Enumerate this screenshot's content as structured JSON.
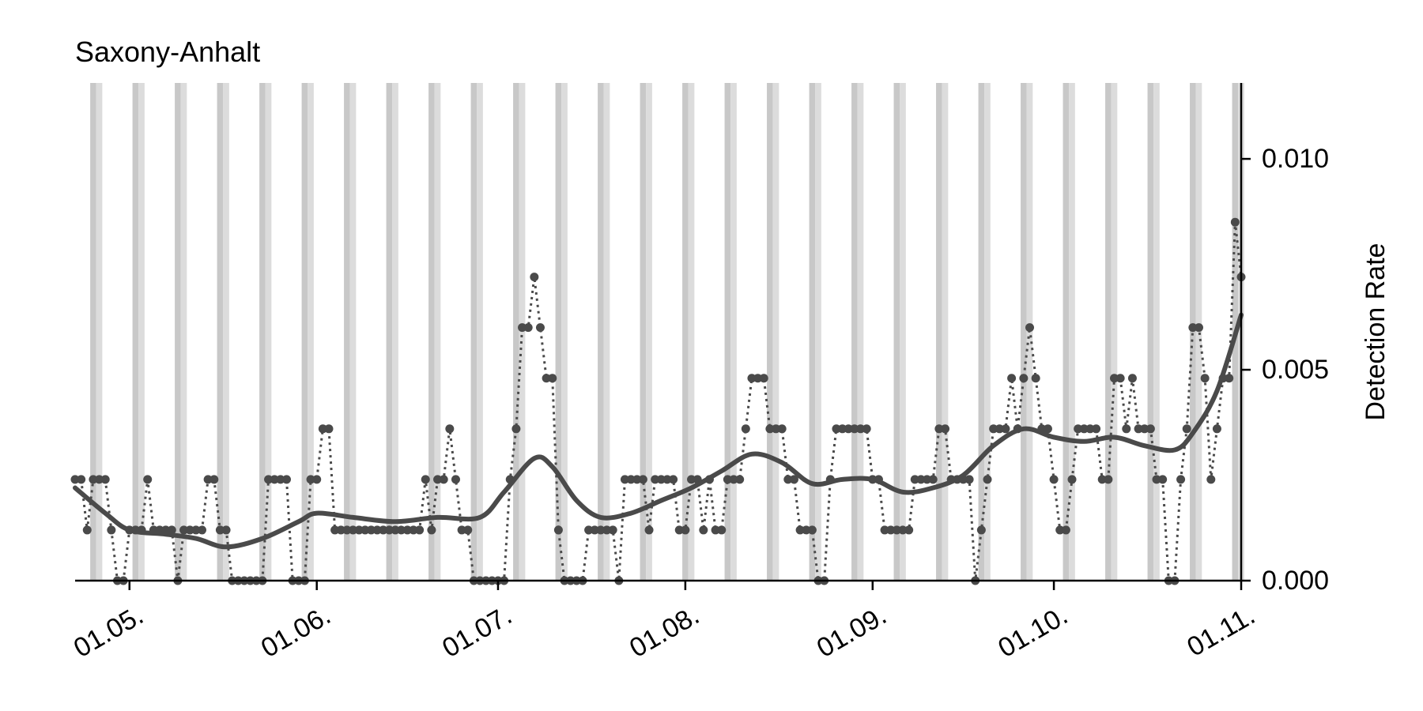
{
  "chart_data": {
    "type": "line",
    "title": "Saxony-Anhalt",
    "xlabel": "",
    "ylabel": "Detection Rate",
    "x_ticks": [
      "01.05.",
      "01.06.",
      "01.07.",
      "01.08.",
      "01.09.",
      "01.10.",
      "01.11."
    ],
    "y_ticks": [
      "0.000",
      "0.005",
      "0.010"
    ],
    "xlim": [
      "2020-04-22",
      "2020-11-01"
    ],
    "ylim": [
      0,
      0.0118
    ],
    "y_axis_side": "right",
    "grid": false,
    "weekend_shading": true,
    "colors": {
      "main": "#4a4a4a",
      "weekend_band": "#dcdcdc",
      "weekend_band_edge": "#c8c8c8",
      "axis": "#000000"
    },
    "series": [
      {
        "style": "dotted-markers",
        "points": [
          [
            "2020-04-22",
            0.0024
          ],
          [
            "2020-04-23",
            0.0024
          ],
          [
            "2020-04-24",
            0.0012
          ],
          [
            "2020-04-25",
            0.0024
          ],
          [
            "2020-04-26",
            0.0024
          ],
          [
            "2020-04-27",
            0.0024
          ],
          [
            "2020-04-28",
            0.0012
          ],
          [
            "2020-04-29",
            0.0
          ],
          [
            "2020-04-30",
            0.0
          ],
          [
            "2020-05-01",
            0.0012
          ],
          [
            "2020-05-02",
            0.0012
          ],
          [
            "2020-05-03",
            0.0012
          ],
          [
            "2020-05-04",
            0.0024
          ],
          [
            "2020-05-05",
            0.0012
          ],
          [
            "2020-05-06",
            0.0012
          ],
          [
            "2020-05-07",
            0.0012
          ],
          [
            "2020-05-08",
            0.0012
          ],
          [
            "2020-05-09",
            0.0
          ],
          [
            "2020-05-10",
            0.0012
          ],
          [
            "2020-05-11",
            0.0012
          ],
          [
            "2020-05-12",
            0.0012
          ],
          [
            "2020-05-13",
            0.0012
          ],
          [
            "2020-05-14",
            0.0024
          ],
          [
            "2020-05-15",
            0.0024
          ],
          [
            "2020-05-16",
            0.0012
          ],
          [
            "2020-05-17",
            0.0012
          ],
          [
            "2020-05-18",
            0.0
          ],
          [
            "2020-05-19",
            0.0
          ],
          [
            "2020-05-20",
            0.0
          ],
          [
            "2020-05-21",
            0.0
          ],
          [
            "2020-05-22",
            0.0
          ],
          [
            "2020-05-23",
            0.0
          ],
          [
            "2020-05-24",
            0.0024
          ],
          [
            "2020-05-25",
            0.0024
          ],
          [
            "2020-05-26",
            0.0024
          ],
          [
            "2020-05-27",
            0.0024
          ],
          [
            "2020-05-28",
            0.0
          ],
          [
            "2020-05-29",
            0.0
          ],
          [
            "2020-05-30",
            0.0
          ],
          [
            "2020-05-31",
            0.0024
          ],
          [
            "2020-06-01",
            0.0024
          ],
          [
            "2020-06-02",
            0.0036
          ],
          [
            "2020-06-03",
            0.0036
          ],
          [
            "2020-06-04",
            0.0012
          ],
          [
            "2020-06-05",
            0.0012
          ],
          [
            "2020-06-06",
            0.0012
          ],
          [
            "2020-06-07",
            0.0012
          ],
          [
            "2020-06-08",
            0.0012
          ],
          [
            "2020-06-09",
            0.0012
          ],
          [
            "2020-06-10",
            0.0012
          ],
          [
            "2020-06-11",
            0.0012
          ],
          [
            "2020-06-12",
            0.0012
          ],
          [
            "2020-06-13",
            0.0012
          ],
          [
            "2020-06-14",
            0.0012
          ],
          [
            "2020-06-15",
            0.0012
          ],
          [
            "2020-06-16",
            0.0012
          ],
          [
            "2020-06-17",
            0.0012
          ],
          [
            "2020-06-18",
            0.0012
          ],
          [
            "2020-06-19",
            0.0024
          ],
          [
            "2020-06-20",
            0.0012
          ],
          [
            "2020-06-21",
            0.0024
          ],
          [
            "2020-06-22",
            0.0024
          ],
          [
            "2020-06-23",
            0.0036
          ],
          [
            "2020-06-24",
            0.0024
          ],
          [
            "2020-06-25",
            0.0012
          ],
          [
            "2020-06-26",
            0.0012
          ],
          [
            "2020-06-27",
            0.0
          ],
          [
            "2020-06-28",
            0.0
          ],
          [
            "2020-06-29",
            0.0
          ],
          [
            "2020-06-30",
            0.0
          ],
          [
            "2020-07-01",
            0.0
          ],
          [
            "2020-07-02",
            0.0
          ],
          [
            "2020-07-03",
            0.0024
          ],
          [
            "2020-07-04",
            0.0036
          ],
          [
            "2020-07-05",
            0.006
          ],
          [
            "2020-07-06",
            0.006
          ],
          [
            "2020-07-07",
            0.0072
          ],
          [
            "2020-07-08",
            0.006
          ],
          [
            "2020-07-09",
            0.0048
          ],
          [
            "2020-07-10",
            0.0048
          ],
          [
            "2020-07-11",
            0.0012
          ],
          [
            "2020-07-12",
            0.0
          ],
          [
            "2020-07-13",
            0.0
          ],
          [
            "2020-07-14",
            0.0
          ],
          [
            "2020-07-15",
            0.0
          ],
          [
            "2020-07-16",
            0.0012
          ],
          [
            "2020-07-17",
            0.0012
          ],
          [
            "2020-07-18",
            0.0012
          ],
          [
            "2020-07-19",
            0.0012
          ],
          [
            "2020-07-20",
            0.0012
          ],
          [
            "2020-07-21",
            0.0
          ],
          [
            "2020-07-22",
            0.0024
          ],
          [
            "2020-07-23",
            0.0024
          ],
          [
            "2020-07-24",
            0.0024
          ],
          [
            "2020-07-25",
            0.0024
          ],
          [
            "2020-07-26",
            0.0012
          ],
          [
            "2020-07-27",
            0.0024
          ],
          [
            "2020-07-28",
            0.0024
          ],
          [
            "2020-07-29",
            0.0024
          ],
          [
            "2020-07-30",
            0.0024
          ],
          [
            "2020-07-31",
            0.0012
          ],
          [
            "2020-08-01",
            0.0012
          ],
          [
            "2020-08-02",
            0.0024
          ],
          [
            "2020-08-03",
            0.0024
          ],
          [
            "2020-08-04",
            0.0012
          ],
          [
            "2020-08-05",
            0.0024
          ],
          [
            "2020-08-06",
            0.0012
          ],
          [
            "2020-08-07",
            0.0012
          ],
          [
            "2020-08-08",
            0.0024
          ],
          [
            "2020-08-09",
            0.0024
          ],
          [
            "2020-08-10",
            0.0024
          ],
          [
            "2020-08-11",
            0.0036
          ],
          [
            "2020-08-12",
            0.0048
          ],
          [
            "2020-08-13",
            0.0048
          ],
          [
            "2020-08-14",
            0.0048
          ],
          [
            "2020-08-15",
            0.0036
          ],
          [
            "2020-08-16",
            0.0036
          ],
          [
            "2020-08-17",
            0.0036
          ],
          [
            "2020-08-18",
            0.0024
          ],
          [
            "2020-08-19",
            0.0024
          ],
          [
            "2020-08-20",
            0.0012
          ],
          [
            "2020-08-21",
            0.0012
          ],
          [
            "2020-08-22",
            0.0012
          ],
          [
            "2020-08-23",
            0.0
          ],
          [
            "2020-08-24",
            0.0
          ],
          [
            "2020-08-25",
            0.0024
          ],
          [
            "2020-08-26",
            0.0036
          ],
          [
            "2020-08-27",
            0.0036
          ],
          [
            "2020-08-28",
            0.0036
          ],
          [
            "2020-08-29",
            0.0036
          ],
          [
            "2020-08-30",
            0.0036
          ],
          [
            "2020-08-31",
            0.0036
          ],
          [
            "2020-09-01",
            0.0024
          ],
          [
            "2020-09-02",
            0.0024
          ],
          [
            "2020-09-03",
            0.0012
          ],
          [
            "2020-09-04",
            0.0012
          ],
          [
            "2020-09-05",
            0.0012
          ],
          [
            "2020-09-06",
            0.0012
          ],
          [
            "2020-09-07",
            0.0012
          ],
          [
            "2020-09-08",
            0.0024
          ],
          [
            "2020-09-09",
            0.0024
          ],
          [
            "2020-09-10",
            0.0024
          ],
          [
            "2020-09-11",
            0.0024
          ],
          [
            "2020-09-12",
            0.0036
          ],
          [
            "2020-09-13",
            0.0036
          ],
          [
            "2020-09-14",
            0.0024
          ],
          [
            "2020-09-15",
            0.0024
          ],
          [
            "2020-09-16",
            0.0024
          ],
          [
            "2020-09-17",
            0.0024
          ],
          [
            "2020-09-18",
            0.0
          ],
          [
            "2020-09-19",
            0.0012
          ],
          [
            "2020-09-20",
            0.0024
          ],
          [
            "2020-09-21",
            0.0036
          ],
          [
            "2020-09-22",
            0.0036
          ],
          [
            "2020-09-23",
            0.0036
          ],
          [
            "2020-09-24",
            0.0048
          ],
          [
            "2020-09-25",
            0.0036
          ],
          [
            "2020-09-26",
            0.0048
          ],
          [
            "2020-09-27",
            0.006
          ],
          [
            "2020-09-28",
            0.0048
          ],
          [
            "2020-09-29",
            0.0036
          ],
          [
            "2020-09-30",
            0.0036
          ],
          [
            "2020-10-01",
            0.0024
          ],
          [
            "2020-10-02",
            0.0012
          ],
          [
            "2020-10-03",
            0.0012
          ],
          [
            "2020-10-04",
            0.0024
          ],
          [
            "2020-10-05",
            0.0036
          ],
          [
            "2020-10-06",
            0.0036
          ],
          [
            "2020-10-07",
            0.0036
          ],
          [
            "2020-10-08",
            0.0036
          ],
          [
            "2020-10-09",
            0.0024
          ],
          [
            "2020-10-10",
            0.0024
          ],
          [
            "2020-10-11",
            0.0048
          ],
          [
            "2020-10-12",
            0.0048
          ],
          [
            "2020-10-13",
            0.0036
          ],
          [
            "2020-10-14",
            0.0048
          ],
          [
            "2020-10-15",
            0.0036
          ],
          [
            "2020-10-16",
            0.0036
          ],
          [
            "2020-10-17",
            0.0036
          ],
          [
            "2020-10-18",
            0.0024
          ],
          [
            "2020-10-19",
            0.0024
          ],
          [
            "2020-10-20",
            0.0
          ],
          [
            "2020-10-21",
            0.0
          ],
          [
            "2020-10-22",
            0.0024
          ],
          [
            "2020-10-23",
            0.0036
          ],
          [
            "2020-10-24",
            0.006
          ],
          [
            "2020-10-25",
            0.006
          ],
          [
            "2020-10-26",
            0.0048
          ],
          [
            "2020-10-27",
            0.0024
          ],
          [
            "2020-10-28",
            0.0036
          ],
          [
            "2020-10-29",
            0.0048
          ],
          [
            "2020-10-30",
            0.0048
          ],
          [
            "2020-10-31",
            0.0085
          ],
          [
            "2020-11-01",
            0.0072
          ]
        ]
      },
      {
        "style": "smooth-line",
        "points": [
          [
            "2020-04-22",
            0.0022
          ],
          [
            "2020-04-27",
            0.0016
          ],
          [
            "2020-05-01",
            0.0012
          ],
          [
            "2020-05-07",
            0.0011
          ],
          [
            "2020-05-12",
            0.001
          ],
          [
            "2020-05-17",
            0.0008
          ],
          [
            "2020-05-23",
            0.001
          ],
          [
            "2020-05-29",
            0.0014
          ],
          [
            "2020-06-01",
            0.0016
          ],
          [
            "2020-06-07",
            0.0015
          ],
          [
            "2020-06-14",
            0.0014
          ],
          [
            "2020-06-21",
            0.0015
          ],
          [
            "2020-06-28",
            0.0015
          ],
          [
            "2020-07-02",
            0.0021
          ],
          [
            "2020-07-07",
            0.0029
          ],
          [
            "2020-07-10",
            0.0027
          ],
          [
            "2020-07-14",
            0.0019
          ],
          [
            "2020-07-18",
            0.0015
          ],
          [
            "2020-07-23",
            0.0016
          ],
          [
            "2020-07-28",
            0.0019
          ],
          [
            "2020-08-02",
            0.0022
          ],
          [
            "2020-08-07",
            0.0026
          ],
          [
            "2020-08-12",
            0.003
          ],
          [
            "2020-08-17",
            0.0028
          ],
          [
            "2020-08-22",
            0.0023
          ],
          [
            "2020-08-27",
            0.0024
          ],
          [
            "2020-09-01",
            0.0024
          ],
          [
            "2020-09-06",
            0.0021
          ],
          [
            "2020-09-11",
            0.0022
          ],
          [
            "2020-09-16",
            0.0025
          ],
          [
            "2020-09-21",
            0.0032
          ],
          [
            "2020-09-26",
            0.0036
          ],
          [
            "2020-10-01",
            0.0034
          ],
          [
            "2020-10-06",
            0.0033
          ],
          [
            "2020-10-11",
            0.0034
          ],
          [
            "2020-10-16",
            0.0032
          ],
          [
            "2020-10-21",
            0.0031
          ],
          [
            "2020-10-24",
            0.0035
          ],
          [
            "2020-10-28",
            0.0045
          ],
          [
            "2020-11-01",
            0.0063
          ]
        ]
      }
    ]
  }
}
